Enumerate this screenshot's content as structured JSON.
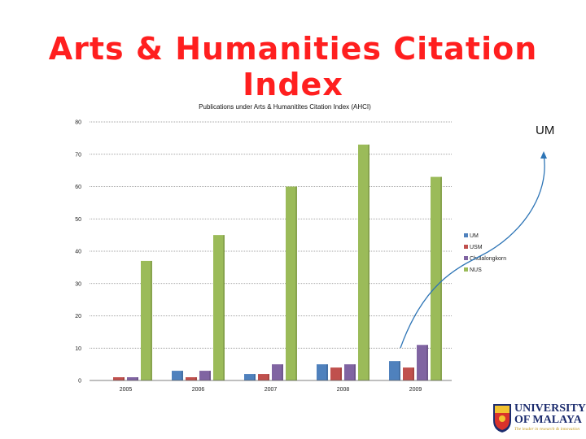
{
  "slide": {
    "title": "Arts & Humanities Citation Index",
    "annotation": "UM"
  },
  "logo": {
    "line1": "UNIVERSITY",
    "line2": "OF MALAYA",
    "tagline": "The leader in research & innovation"
  },
  "colors": {
    "title": "#ff1f1f",
    "UM": "#4f81bd",
    "USM": "#c0504d",
    "Chulalongkorn": "#8064a2",
    "NUS": "#9bbb59",
    "arrow": "#2e75b6"
  },
  "chart_data": {
    "type": "bar",
    "title": "Publications under Arts & Humanitites Citation Index (AHCI)",
    "categories": [
      "2005",
      "2006",
      "2007",
      "2008",
      "2009"
    ],
    "series": [
      {
        "name": "UM",
        "values": [
          0,
          3,
          2,
          5,
          6
        ]
      },
      {
        "name": "USM",
        "values": [
          1,
          1,
          2,
          4,
          4
        ]
      },
      {
        "name": "Chulalongkorn",
        "values": [
          1,
          3,
          5,
          5,
          11
        ]
      },
      {
        "name": "NUS",
        "values": [
          37,
          45,
          60,
          73,
          63
        ]
      }
    ],
    "yticks": [
      "0",
      "10",
      "20",
      "30",
      "40",
      "50",
      "60",
      "70",
      "80"
    ],
    "ylim": [
      0,
      80
    ],
    "grid": true,
    "legend": "right"
  }
}
